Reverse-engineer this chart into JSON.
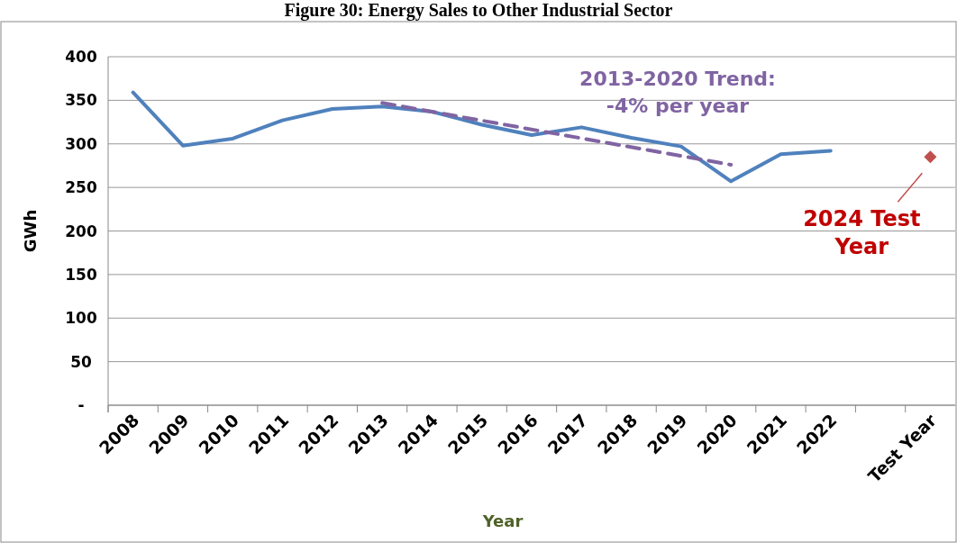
{
  "chart_data": {
    "type": "line",
    "title": "Figure 30: Energy Sales to Other Industrial Sector",
    "xlabel": "Year",
    "ylabel": "GWh",
    "categories": [
      "2008",
      "2009",
      "2010",
      "2011",
      "2012",
      "2013",
      "2014",
      "2015",
      "2016",
      "2017",
      "2018",
      "2019",
      "2020",
      "2021",
      "2022",
      null,
      "Test Year"
    ],
    "series": [
      {
        "color": "#4f81bd",
        "line_style": "solid",
        "marker": "none",
        "values": [
          359,
          298,
          306,
          327,
          340,
          343,
          337,
          322,
          310,
          319,
          307,
          297,
          257,
          288,
          292,
          null,
          null
        ]
      },
      {
        "color": "#8064a2",
        "line_style": "dashed",
        "marker": "none",
        "values": [
          null,
          null,
          null,
          null,
          null,
          347,
          null,
          null,
          null,
          null,
          null,
          null,
          276,
          null,
          null,
          null,
          null
        ]
      },
      {
        "type": "scatter",
        "color": "#c0504d",
        "marker": "diamond",
        "x": [
          "Test Year"
        ],
        "values": [
          285
        ]
      }
    ],
    "ylim": [
      0,
      400
    ],
    "yticks": [
      {
        "value": 0,
        "label": "-"
      },
      50,
      100,
      150,
      200,
      250,
      300,
      350,
      400
    ],
    "grid": "y",
    "annotations": [
      "2013-2020 Trend: -4% per year",
      {
        "text": "2024 Test Year",
        "x": "Test Year",
        "y": 285
      }
    ]
  }
}
